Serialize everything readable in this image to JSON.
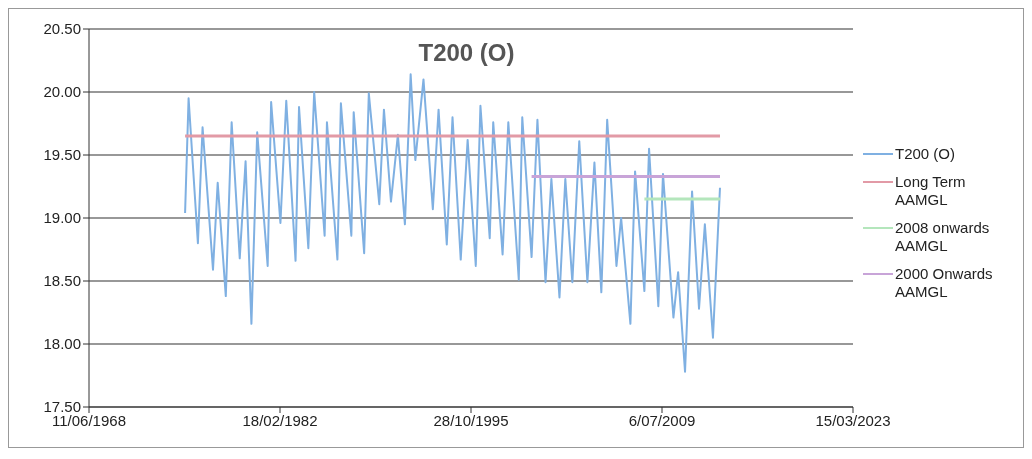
{
  "chart_data": {
    "type": "line",
    "title": "T200 (O)",
    "xlim": [
      "1968-06-11",
      "2023-03-15"
    ],
    "xticks": [
      {
        "value": "1968-06-11",
        "label": "11/06/1968"
      },
      {
        "value": "1982-02-18",
        "label": "18/02/1982"
      },
      {
        "value": "1995-10-28",
        "label": "28/10/1995"
      },
      {
        "value": "2009-07-06",
        "label": "6/07/2009"
      },
      {
        "value": "2023-03-15",
        "label": "15/03/2023"
      }
    ],
    "ylim": [
      17.5,
      20.5
    ],
    "yticks": [
      {
        "value": 17.5,
        "label": "17.50"
      },
      {
        "value": 18,
        "label": "18.00"
      },
      {
        "value": 18.5,
        "label": "18.50"
      },
      {
        "value": 19,
        "label": "19.00"
      },
      {
        "value": 19.5,
        "label": "19.50"
      },
      {
        "value": 20,
        "label": "20.00"
      },
      {
        "value": 20.5,
        "label": "20.50"
      }
    ],
    "grid": "y",
    "legend": "right",
    "marker": "none",
    "line_style": "solid",
    "series": [
      {
        "name": "T200 (O)",
        "color": "#7fb0e2",
        "x": [
          "1975-05",
          "1975-08",
          "1976-04",
          "1976-08",
          "1977-05",
          "1977-09",
          "1978-04",
          "1978-09",
          "1979-04",
          "1979-09",
          "1980-02",
          "1980-07",
          "1981-04",
          "1981-07",
          "1982-03",
          "1982-08",
          "1983-04",
          "1983-07",
          "1984-03",
          "1984-08",
          "1985-05",
          "1985-07",
          "1986-04",
          "1986-07",
          "1987-04",
          "1987-06",
          "1988-03",
          "1988-07",
          "1989-04",
          "1989-08",
          "1990-02",
          "1990-08",
          "1991-02",
          "1991-07",
          "1991-11",
          "1992-06",
          "1993-02",
          "1993-07",
          "1994-02",
          "1994-07",
          "1995-02",
          "1995-08",
          "1996-03",
          "1996-07",
          "1997-03",
          "1997-06",
          "1998-02",
          "1998-07",
          "1999-04",
          "1999-07",
          "2000-03",
          "2000-08",
          "2001-03",
          "2001-08",
          "2002-03",
          "2002-08",
          "2003-02",
          "2003-08",
          "2004-03",
          "2004-09",
          "2005-03",
          "2005-08",
          "2006-04",
          "2006-08",
          "2007-04",
          "2007-08",
          "2008-04",
          "2008-08",
          "2009-04",
          "2009-08",
          "2010-05",
          "2010-09",
          "2011-03",
          "2011-09",
          "2012-03",
          "2012-08",
          "2013-03",
          "2013-09"
        ],
        "values": [
          19.04,
          19.95,
          18.8,
          19.72,
          18.59,
          19.28,
          18.38,
          19.76,
          18.68,
          19.45,
          18.16,
          19.68,
          18.62,
          19.92,
          18.96,
          19.93,
          18.66,
          19.88,
          18.76,
          20.0,
          18.86,
          19.76,
          18.67,
          19.91,
          18.86,
          19.84,
          18.72,
          19.99,
          19.11,
          19.86,
          19.13,
          19.66,
          18.95,
          20.14,
          19.46,
          20.1,
          19.07,
          19.86,
          18.79,
          19.8,
          18.67,
          19.62,
          18.62,
          19.89,
          18.84,
          19.76,
          18.71,
          19.76,
          18.51,
          19.8,
          18.69,
          19.78,
          18.49,
          19.31,
          18.37,
          19.31,
          18.49,
          19.61,
          18.49,
          19.44,
          18.41,
          19.78,
          18.62,
          19.0,
          18.16,
          19.37,
          18.42,
          19.55,
          18.3,
          19.35,
          18.21,
          18.57,
          17.78,
          19.21,
          18.28,
          18.95,
          18.05,
          19.24
        ]
      },
      {
        "name": "Long Term AAMGL",
        "color": "#e29aa6",
        "x": [
          "1975-05",
          "2013-09"
        ],
        "values": [
          19.65,
          19.65
        ]
      },
      {
        "name": "2008  onwards AAMGL",
        "color": "#b4e6bc",
        "x": [
          "2008-04",
          "2013-09"
        ],
        "values": [
          19.15,
          19.15
        ]
      },
      {
        "name": "2000 Onwards AAMGL",
        "color": "#c8a4d8",
        "x": [
          "2000-03",
          "2013-09"
        ],
        "values": [
          19.33,
          19.33
        ]
      }
    ]
  }
}
